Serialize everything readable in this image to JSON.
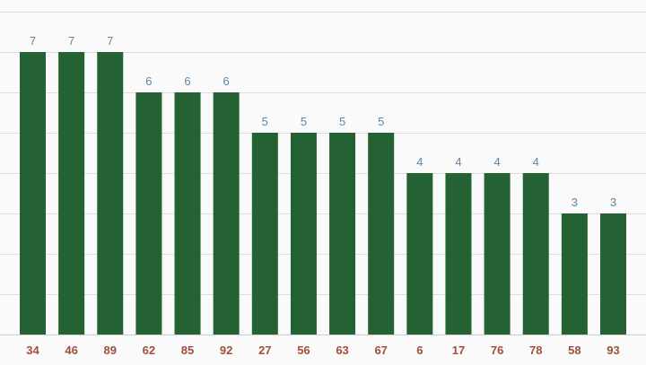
{
  "colors": {
    "background": "#fafafa",
    "bar": "#256233",
    "gridline": "#dddddd",
    "value_label": "#5f86a8",
    "category_label": "#a0503a"
  },
  "chart_data": {
    "type": "bar",
    "categories": [
      "34",
      "46",
      "89",
      "62",
      "85",
      "92",
      "27",
      "56",
      "63",
      "67",
      "6",
      "17",
      "76",
      "78",
      "58",
      "93"
    ],
    "values": [
      7,
      7,
      7,
      6,
      6,
      6,
      5,
      5,
      5,
      5,
      4,
      4,
      4,
      4,
      3,
      3
    ],
    "ylim": [
      0,
      8
    ],
    "grid": true,
    "legend": "none",
    "data_labels": true
  }
}
